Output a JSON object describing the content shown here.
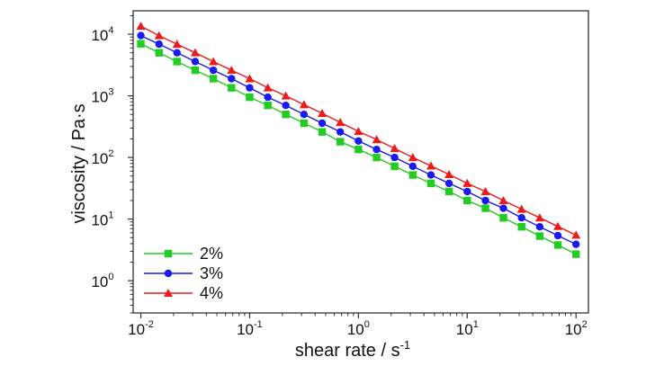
{
  "chart_data": {
    "type": "line",
    "xlabel": "shear rate / s",
    "xlabel_exponent": "-1",
    "ylabel": "viscosity / Pa·s",
    "xscale": "log",
    "yscale": "log",
    "xlim": [
      0.0085,
      130
    ],
    "ylim": [
      0.3,
      24000
    ],
    "x_ticks": [
      {
        "base": "10",
        "exp": "-2"
      },
      {
        "base": "10",
        "exp": "-1"
      },
      {
        "base": "10",
        "exp": "0"
      },
      {
        "base": "10",
        "exp": "1"
      },
      {
        "base": "10",
        "exp": "2"
      }
    ],
    "y_ticks": [
      {
        "base": "10",
        "exp": "0"
      },
      {
        "base": "10",
        "exp": "1"
      },
      {
        "base": "10",
        "exp": "2"
      },
      {
        "base": "10",
        "exp": "3"
      },
      {
        "base": "10",
        "exp": "4"
      }
    ],
    "x": [
      0.01,
      0.0147,
      0.0215,
      0.0316,
      0.0464,
      0.0681,
      0.1,
      0.147,
      0.215,
      0.316,
      0.464,
      0.681,
      1.0,
      1.47,
      2.15,
      3.16,
      4.64,
      6.81,
      10.0,
      14.7,
      21.5,
      31.6,
      46.4,
      68.1,
      100
    ],
    "series": [
      {
        "name": "2%",
        "color": "#22cc22",
        "marker": "square",
        "values": [
          7000,
          5000,
          3600,
          2600,
          1900,
          1350,
          950,
          700,
          500,
          360,
          260,
          180,
          135,
          100,
          72,
          52,
          38,
          28,
          20,
          15,
          10.5,
          7.5,
          5.3,
          3.8,
          2.7
        ]
      },
      {
        "name": "3%",
        "color": "#1a1aee",
        "marker": "circle",
        "values": [
          9500,
          6900,
          5000,
          3600,
          2600,
          1900,
          1350,
          950,
          700,
          500,
          360,
          260,
          185,
          135,
          100,
          72,
          52,
          38,
          28,
          20,
          15,
          10.5,
          7.5,
          5.4,
          3.9
        ]
      },
      {
        "name": "4%",
        "color": "#ee1a1a",
        "marker": "triangle",
        "values": [
          13500,
          9500,
          6900,
          5000,
          3600,
          2600,
          1900,
          1350,
          1000,
          720,
          520,
          370,
          265,
          195,
          140,
          100,
          73,
          53,
          38,
          28,
          20,
          14.5,
          10.5,
          7.6,
          5.5
        ]
      }
    ],
    "legend_position": "bottom-left",
    "grid": false
  }
}
